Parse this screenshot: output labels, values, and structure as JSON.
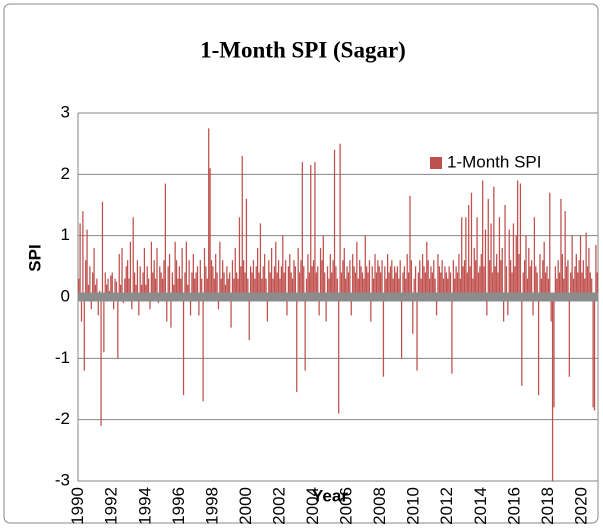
{
  "chart_data": {
    "type": "bar",
    "title": "1-Month SPI (Sagar)",
    "x_label": "Year",
    "y_label": "SPI",
    "legend": "upper right",
    "grid": true,
    "ylim": [
      -3,
      3
    ],
    "yticks": [
      3,
      2,
      1,
      0,
      -1,
      -2,
      -3
    ],
    "categories": [
      "1990",
      null,
      null,
      null,
      null,
      null,
      null,
      null,
      null,
      null,
      null,
      null,
      null,
      null,
      null,
      null,
      null,
      null,
      null,
      null,
      null,
      null,
      null,
      null,
      "1992",
      null,
      null,
      null,
      null,
      null,
      null,
      null,
      null,
      null,
      null,
      null,
      null,
      null,
      null,
      null,
      null,
      null,
      null,
      null,
      null,
      null,
      null,
      null,
      "1994",
      null,
      null,
      null,
      null,
      null,
      null,
      null,
      null,
      null,
      null,
      null,
      null,
      null,
      null,
      null,
      null,
      null,
      null,
      null,
      null,
      null,
      null,
      null,
      "1996",
      null,
      null,
      null,
      null,
      null,
      null,
      null,
      null,
      null,
      null,
      null,
      null,
      null,
      null,
      null,
      null,
      null,
      null,
      null,
      null,
      null,
      null,
      null,
      "1998",
      null,
      null,
      null,
      null,
      null,
      null,
      null,
      null,
      null,
      null,
      null,
      null,
      null,
      null,
      null,
      null,
      null,
      null,
      null,
      null,
      null,
      null,
      null,
      "2000",
      null,
      null,
      null,
      null,
      null,
      null,
      null,
      null,
      null,
      null,
      null,
      null,
      null,
      null,
      null,
      null,
      null,
      null,
      null,
      null,
      null,
      null,
      null,
      "2002",
      null,
      null,
      null,
      null,
      null,
      null,
      null,
      null,
      null,
      null,
      null,
      null,
      null,
      null,
      null,
      null,
      null,
      null,
      null,
      null,
      null,
      null,
      null,
      "2004",
      null,
      null,
      null,
      null,
      null,
      null,
      null,
      null,
      null,
      null,
      null,
      null,
      null,
      null,
      null,
      null,
      null,
      null,
      null,
      null,
      null,
      null,
      null,
      "2006",
      null,
      null,
      null,
      null,
      null,
      null,
      null,
      null,
      null,
      null,
      null,
      null,
      null,
      null,
      null,
      null,
      null,
      null,
      null,
      null,
      null,
      null,
      null,
      "2008",
      null,
      null,
      null,
      null,
      null,
      null,
      null,
      null,
      null,
      null,
      null,
      null,
      null,
      null,
      null,
      null,
      null,
      null,
      null,
      null,
      null,
      null,
      null,
      "2010",
      null,
      null,
      null,
      null,
      null,
      null,
      null,
      null,
      null,
      null,
      null,
      null,
      null,
      null,
      null,
      null,
      null,
      null,
      null,
      null,
      null,
      null,
      null,
      "2012",
      null,
      null,
      null,
      null,
      null,
      null,
      null,
      null,
      null,
      null,
      null,
      null,
      null,
      null,
      null,
      null,
      null,
      null,
      null,
      null,
      null,
      null,
      null,
      "2014",
      null,
      null,
      null,
      null,
      null,
      null,
      null,
      null,
      null,
      null,
      null,
      null,
      null,
      null,
      null,
      null,
      null,
      null,
      null,
      null,
      null,
      null,
      null,
      "2016",
      null,
      null,
      null,
      null,
      null,
      null,
      null,
      null,
      null,
      null,
      null,
      null,
      null,
      null,
      null,
      null,
      null,
      null,
      null,
      null,
      null,
      null,
      null,
      "2018",
      null,
      null,
      null,
      null,
      null,
      null,
      null,
      null,
      null,
      null,
      null,
      null,
      null,
      null,
      null,
      null,
      null,
      null,
      null,
      null,
      null,
      null,
      null,
      "2020",
      null,
      null,
      null,
      null,
      null,
      null,
      null,
      null,
      null,
      null,
      null
    ],
    "series": [
      {
        "name": "1-Month SPI",
        "color": "#c0504d",
        "values": [
          0.3,
          1.2,
          -0.4,
          1.4,
          -1.2,
          0.6,
          1.1,
          0.2,
          0.5,
          -0.2,
          0.4,
          0.8,
          0.2,
          0.3,
          -0.3,
          0.1,
          -2.1,
          1.55,
          -0.9,
          0.4,
          0.2,
          0.3,
          0.1,
          0.35,
          0.4,
          -0.2,
          0.3,
          0.25,
          -1.0,
          0.7,
          0.2,
          0.8,
          -0.1,
          0.3,
          0.5,
          0.6,
          0.3,
          0.9,
          -0.2,
          1.3,
          0.4,
          0.2,
          0.6,
          -0.3,
          0.5,
          0.2,
          0.4,
          0.8,
          0.2,
          0.5,
          0.3,
          -0.2,
          0.9,
          0.4,
          0.6,
          0.3,
          0.8,
          -0.1,
          0.5,
          0.4,
          0.3,
          0.6,
          1.85,
          -0.4,
          0.5,
          0.7,
          -0.5,
          0.4,
          0.2,
          0.9,
          0.6,
          0.3,
          0.5,
          0.3,
          0.8,
          -1.6,
          0.4,
          0.9,
          0.2,
          0.6,
          -0.3,
          0.4,
          0.7,
          0.3,
          0.4,
          0.5,
          -0.3,
          0.6,
          0.3,
          -1.7,
          0.8,
          0.5,
          0.3,
          2.75,
          2.1,
          0.6,
          0.5,
          0.3,
          0.7,
          0.4,
          -0.2,
          0.9,
          0.3,
          0.6,
          0.4,
          0.2,
          0.5,
          0.3,
          0.4,
          -0.5,
          0.6,
          0.3,
          0.8,
          0.4,
          0.3,
          1.3,
          0.5,
          2.3,
          0.6,
          0.4,
          1.6,
          0.3,
          -0.7,
          0.5,
          0.4,
          0.6,
          0.3,
          0.5,
          0.8,
          0.4,
          1.2,
          0.3,
          0.5,
          0.7,
          0.3,
          -0.4,
          0.6,
          0.4,
          0.8,
          0.3,
          0.5,
          0.9,
          0.4,
          0.6,
          0.3,
          0.5,
          1.0,
          0.4,
          0.6,
          -0.3,
          0.5,
          0.7,
          0.4,
          0.3,
          0.6,
          0.5,
          -1.55,
          0.8,
          0.4,
          0.6,
          2.2,
          0.5,
          -1.2,
          0.3,
          0.7,
          0.4,
          2.15,
          0.5,
          0.6,
          2.2,
          0.4,
          0.5,
          -0.3,
          0.8,
          0.6,
          1.0,
          0.4,
          -0.4,
          0.5,
          0.3,
          0.7,
          0.4,
          0.6,
          2.4,
          0.5,
          0.3,
          -1.9,
          2.5,
          0.4,
          0.6,
          0.8,
          0.3,
          0.5,
          0.4,
          0.6,
          -0.3,
          0.7,
          0.5,
          0.4,
          0.9,
          0.3,
          0.6,
          0.5,
          0.4,
          0.3,
          1.0,
          0.5,
          0.4,
          0.6,
          -0.4,
          0.5,
          0.3,
          0.7,
          0.4,
          0.6,
          0.5,
          0.4,
          0.6,
          -1.3,
          0.5,
          0.3,
          0.7,
          0.4,
          0.5,
          0.6,
          0.3,
          0.5,
          0.4,
          0.5,
          0.3,
          0.6,
          -1.0,
          0.4,
          0.5,
          0.3,
          0.7,
          0.4,
          1.65,
          0.6,
          -0.6,
          0.3,
          0.5,
          -1.2,
          0.4,
          0.6,
          0.3,
          0.7,
          0.5,
          0.4,
          0.9,
          0.6,
          0.3,
          0.5,
          0.4,
          0.6,
          0.3,
          -0.3,
          0.7,
          0.5,
          0.4,
          0.6,
          0.3,
          0.5,
          0.4,
          0.3,
          0.5,
          0.4,
          -1.25,
          0.6,
          0.3,
          0.5,
          0.4,
          0.7,
          0.3,
          1.3,
          0.5,
          0.6,
          1.3,
          0.4,
          1.5,
          0.5,
          1.7,
          0.3,
          0.8,
          0.6,
          1.3,
          0.4,
          0.5,
          0.7,
          1.9,
          0.5,
          1.1,
          -0.3,
          1.6,
          0.6,
          1.2,
          0.4,
          1.8,
          0.5,
          0.7,
          0.4,
          1.3,
          0.6,
          0.8,
          -0.4,
          1.5,
          0.5,
          -0.3,
          1.1,
          0.6,
          0.4,
          1.2,
          0.5,
          1.0,
          1.9,
          0.7,
          1.85,
          -1.45,
          0.4,
          0.6,
          1.0,
          0.3,
          0.8,
          0.5,
          0.6,
          -0.3,
          1.3,
          0.5,
          0.4,
          -1.6,
          0.7,
          0.3,
          0.6,
          0.9,
          0.4,
          0.5,
          0.3,
          1.7,
          -0.4,
          -3.0,
          -1.8,
          0.5,
          0.3,
          0.6,
          0.4,
          1.6,
          0.7,
          0.3,
          1.4,
          0.5,
          0.6,
          -1.3,
          0.4,
          1.0,
          0.3,
          0.5,
          0.7,
          0.4,
          0.6,
          1.0,
          0.4,
          0.6,
          0.3,
          1.05,
          0.5,
          0.8,
          0.4,
          0.3,
          -1.8,
          -1.85,
          0.85,
          0.4
        ]
      }
    ]
  }
}
